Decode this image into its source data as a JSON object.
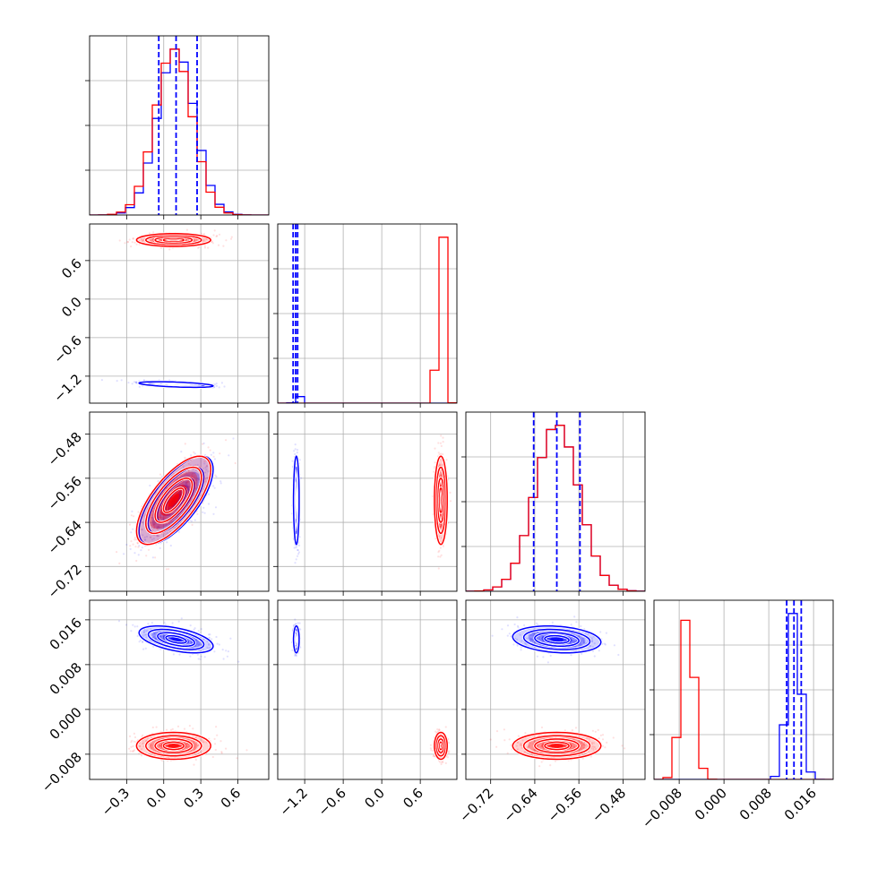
{
  "chart_data": {
    "type": "corner",
    "title": "",
    "grid": true,
    "parameters": [
      {
        "ticks": [
          -0.3,
          0.0,
          0.3,
          0.6
        ],
        "tick_labels": [
          "−0.3",
          "0.0",
          "0.3",
          "0.6"
        ],
        "range": [
          -0.6,
          0.85
        ]
      },
      {
        "ticks": [
          -1.2,
          -0.6,
          0.0,
          0.6
        ],
        "tick_labels": [
          "−1.2",
          "−0.6",
          "0.0",
          "0.6"
        ],
        "range": [
          -1.62,
          1.17
        ]
      },
      {
        "ticks": [
          -0.72,
          -0.64,
          -0.56,
          -0.48
        ],
        "tick_labels": [
          "−0.72",
          "−0.64",
          "−0.56",
          "−0.48"
        ],
        "range": [
          -0.765,
          -0.44
        ]
      },
      {
        "ticks": [
          -0.008,
          0.0,
          0.008,
          0.016
        ],
        "tick_labels": [
          "−0.008",
          "0.000",
          "0.008",
          "0.016"
        ],
        "range": [
          -0.0125,
          0.0195
        ]
      }
    ],
    "series": [
      {
        "color": "#0000ff",
        "means": [
          0.1,
          -1.33,
          -0.6,
          0.0125
        ],
        "sds": [
          0.15,
          0.022,
          0.04,
          0.0012
        ],
        "correlations": {
          "1,0": -0.5,
          "2,0": 0.7,
          "3,0": -0.5,
          "3,2": -0.2
        }
      },
      {
        "color": "#ff0000",
        "means": [
          0.08,
          0.92,
          -0.6,
          -0.0065
        ],
        "sds": [
          0.15,
          0.05,
          0.04,
          0.0012
        ],
        "correlations": {
          "2,0": 0.7
        }
      }
    ],
    "quantile_lines": {
      "color": "#0000ff",
      "values": [
        [
          -0.04,
          0.1,
          0.27
        ],
        [
          -1.38,
          -1.34,
          -1.31
        ],
        [
          -0.642,
          -0.6,
          -0.558
        ],
        [
          0.0112,
          0.0125,
          0.0138
        ]
      ]
    }
  }
}
